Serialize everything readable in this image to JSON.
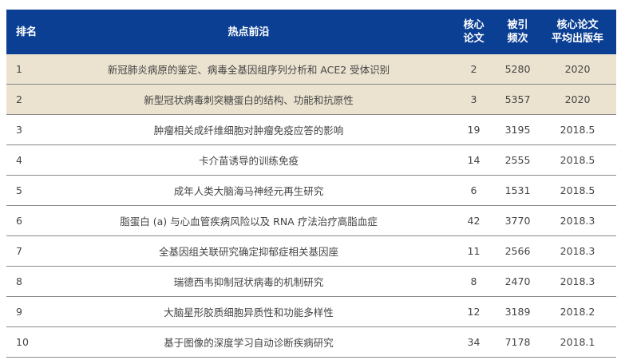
{
  "table": {
    "headers": [
      "排名",
      "热点前沿",
      "核心\n论文",
      "被引\n频次",
      "核心论文\n平均出版年"
    ],
    "rows": [
      {
        "rank": "1",
        "topic": "新冠肺炎病原的鉴定、病毒全基因组序列分析和 ACE2 受体识别",
        "core": "2",
        "cites": "5280",
        "year": "2020",
        "highlight": true
      },
      {
        "rank": "2",
        "topic": "新型冠状病毒刺突糖蛋白的结构、功能和抗原性",
        "core": "3",
        "cites": "5357",
        "year": "2020",
        "highlight": true
      },
      {
        "rank": "3",
        "topic": "肿瘤相关成纤维细胞对肿瘤免疫应答的影响",
        "core": "19",
        "cites": "3195",
        "year": "2018.5"
      },
      {
        "rank": "4",
        "topic": "卡介苗诱导的训练免疫",
        "core": "14",
        "cites": "2555",
        "year": "2018.5"
      },
      {
        "rank": "5",
        "topic": "成年人类大脑海马神经元再生研究",
        "core": "6",
        "cites": "1531",
        "year": "2018.5"
      },
      {
        "rank": "6",
        "topic": "脂蛋白 (a) 与心血管疾病风险以及 RNA 疗法治疗高脂血症",
        "core": "42",
        "cites": "3770",
        "year": "2018.3"
      },
      {
        "rank": "7",
        "topic": "全基因组关联研究确定抑郁症相关基因座",
        "core": "11",
        "cites": "2566",
        "year": "2018.3"
      },
      {
        "rank": "8",
        "topic": "瑞德西韦抑制冠状病毒的机制研究",
        "core": "8",
        "cites": "2470",
        "year": "2018.3"
      },
      {
        "rank": "9",
        "topic": "大脑星形胶质细胞异质性和功能多样性",
        "core": "12",
        "cites": "3189",
        "year": "2018.2"
      },
      {
        "rank": "10",
        "topic": "基于图像的深度学习自动诊断疾病研究",
        "core": "34",
        "cites": "7178",
        "year": "2018.1"
      }
    ]
  },
  "colors": {
    "header": "#0a3f94",
    "highlight": "#ebe3d0"
  }
}
